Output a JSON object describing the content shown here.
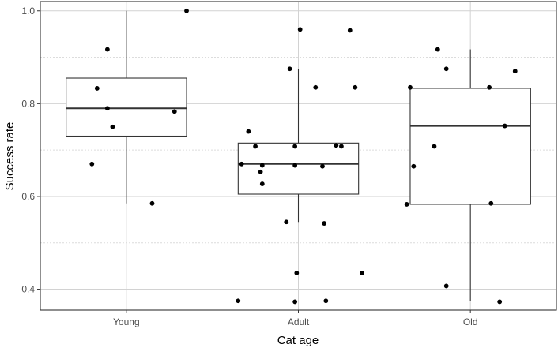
{
  "chart_data": {
    "type": "boxplot",
    "title": "",
    "xlabel": "Cat age",
    "ylabel": "Success rate",
    "categories": [
      "Young",
      "Adult",
      "Old"
    ],
    "ylim": [
      0.355,
      1.02
    ],
    "y_ticks": [
      0.4,
      0.6,
      0.8,
      1.0
    ],
    "y_tick_labels": [
      "0.4",
      "0.6",
      "0.8",
      "1.0"
    ],
    "y_minor_gridlines": [
      0.5,
      0.7,
      0.9
    ],
    "grid": true,
    "boxes": [
      {
        "category": "Young",
        "q1": 0.73,
        "median": 0.79,
        "q3": 0.855,
        "whisker_low": 0.585,
        "whisker_high": 1.0
      },
      {
        "category": "Adult",
        "q1": 0.605,
        "median": 0.67,
        "q3": 0.715,
        "whisker_low": 0.545,
        "whisker_high": 0.875
      },
      {
        "category": "Old",
        "q1": 0.583,
        "median": 0.752,
        "q3": 0.833,
        "whisker_low": 0.375,
        "whisker_high": 0.917
      }
    ],
    "points": [
      {
        "category": "Young",
        "jitter": 0.35,
        "value": 1.0
      },
      {
        "category": "Young",
        "jitter": -0.11,
        "value": 0.917
      },
      {
        "category": "Young",
        "jitter": -0.17,
        "value": 0.833
      },
      {
        "category": "Young",
        "jitter": -0.11,
        "value": 0.79
      },
      {
        "category": "Young",
        "jitter": 0.28,
        "value": 0.783
      },
      {
        "category": "Young",
        "jitter": -0.08,
        "value": 0.75
      },
      {
        "category": "Young",
        "jitter": -0.2,
        "value": 0.67
      },
      {
        "category": "Young",
        "jitter": 0.15,
        "value": 0.585
      },
      {
        "category": "Adult",
        "jitter": 0.01,
        "value": 0.96
      },
      {
        "category": "Adult",
        "jitter": 0.3,
        "value": 0.958
      },
      {
        "category": "Adult",
        "jitter": -0.05,
        "value": 0.875
      },
      {
        "category": "Adult",
        "jitter": 0.1,
        "value": 0.835
      },
      {
        "category": "Adult",
        "jitter": 0.33,
        "value": 0.835
      },
      {
        "category": "Adult",
        "jitter": -0.29,
        "value": 0.74
      },
      {
        "category": "Adult",
        "jitter": -0.25,
        "value": 0.708
      },
      {
        "category": "Adult",
        "jitter": -0.02,
        "value": 0.708
      },
      {
        "category": "Adult",
        "jitter": 0.22,
        "value": 0.71
      },
      {
        "category": "Adult",
        "jitter": 0.25,
        "value": 0.708
      },
      {
        "category": "Adult",
        "jitter": -0.33,
        "value": 0.67
      },
      {
        "category": "Adult",
        "jitter": -0.21,
        "value": 0.667
      },
      {
        "category": "Adult",
        "jitter": -0.02,
        "value": 0.667
      },
      {
        "category": "Adult",
        "jitter": 0.14,
        "value": 0.665
      },
      {
        "category": "Adult",
        "jitter": -0.22,
        "value": 0.653
      },
      {
        "category": "Adult",
        "jitter": -0.21,
        "value": 0.627
      },
      {
        "category": "Adult",
        "jitter": -0.07,
        "value": 0.545
      },
      {
        "category": "Adult",
        "jitter": 0.15,
        "value": 0.542
      },
      {
        "category": "Adult",
        "jitter": -0.01,
        "value": 0.435
      },
      {
        "category": "Adult",
        "jitter": 0.37,
        "value": 0.435
      },
      {
        "category": "Adult",
        "jitter": -0.35,
        "value": 0.375
      },
      {
        "category": "Adult",
        "jitter": -0.02,
        "value": 0.373
      },
      {
        "category": "Adult",
        "jitter": 0.16,
        "value": 0.375
      },
      {
        "category": "Old",
        "jitter": -0.19,
        "value": 0.917
      },
      {
        "category": "Old",
        "jitter": -0.14,
        "value": 0.875
      },
      {
        "category": "Old",
        "jitter": 0.26,
        "value": 0.87
      },
      {
        "category": "Old",
        "jitter": -0.35,
        "value": 0.835
      },
      {
        "category": "Old",
        "jitter": 0.11,
        "value": 0.835
      },
      {
        "category": "Old",
        "jitter": 0.2,
        "value": 0.752
      },
      {
        "category": "Old",
        "jitter": -0.21,
        "value": 0.708
      },
      {
        "category": "Old",
        "jitter": -0.33,
        "value": 0.665
      },
      {
        "category": "Old",
        "jitter": -0.37,
        "value": 0.583
      },
      {
        "category": "Old",
        "jitter": 0.12,
        "value": 0.585
      },
      {
        "category": "Old",
        "jitter": -0.14,
        "value": 0.407
      },
      {
        "category": "Old",
        "jitter": 0.17,
        "value": 0.373
      }
    ]
  }
}
